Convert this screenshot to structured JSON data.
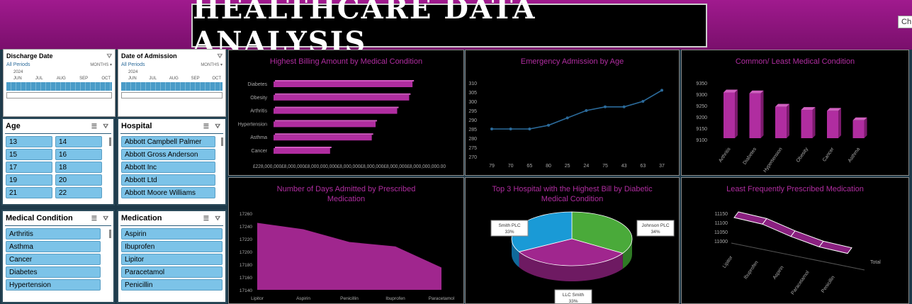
{
  "header": {
    "title": "Healthcare Data Analysis",
    "button_label": "Ch"
  },
  "timelines": [
    {
      "label": "Discharge Date",
      "period": "All Periods",
      "unit": "MONTHS",
      "year": "2024",
      "months": [
        "JUN",
        "JUL",
        "AUG",
        "SEP",
        "OCT"
      ]
    },
    {
      "label": "Date of Admission",
      "period": "All Periods",
      "unit": "MONTHS",
      "year": "2024",
      "months": [
        "JUN",
        "JUL",
        "AUG",
        "SEP",
        "OCT"
      ]
    }
  ],
  "slicers": {
    "age": {
      "label": "Age",
      "items": [
        "13",
        "14",
        "15",
        "16",
        "17",
        "18",
        "19",
        "20",
        "21",
        "22"
      ]
    },
    "hospital": {
      "label": "Hospital",
      "items": [
        "Abbott Campbell Palmer",
        "Abbott Gross Anderson",
        "Abbott Inc",
        "Abbott Ltd",
        "Abbott Moore Williams"
      ]
    },
    "medical_condition": {
      "label": "Medical Condition",
      "items": [
        "Arthritis",
        "Asthma",
        "Cancer",
        "Diabetes",
        "Hypertension"
      ]
    },
    "medication": {
      "label": "Medication",
      "items": [
        "Aspirin",
        "Ibuprofen",
        "Lipitor",
        "Paracetamol",
        "Penicillin"
      ]
    }
  },
  "colors": {
    "accent": "#b02da0",
    "line": "#2b6a9a",
    "slicer_item": "#7cc3e8",
    "pie_blue": "#1a9ad6",
    "pie_green": "#4aaa3a",
    "pie_purple": "#a0268e"
  },
  "chart_data": [
    {
      "type": "bar",
      "title": "Highest Billing Amount by Medical Condition",
      "categories": [
        "Diabetes",
        "Obesity",
        "Arthritis",
        "Hypertension",
        "Asthma",
        "Cancer"
      ],
      "values": [
        1450000,
        1415000,
        1290000,
        1065000,
        1025000,
        590000
      ],
      "xlim": [
        0,
        1900000
      ],
      "tick_labels_raw": "£228,000,000£8,000,000£8,000,000,000£8,000,000£8,000,000£8,000,000£8,000,000,000.00"
    },
    {
      "type": "line",
      "title": "Emergency Admission by Age",
      "categories": [
        "79",
        "70",
        "65",
        "80",
        "25",
        "24",
        "75",
        "43",
        "63",
        "37"
      ],
      "values": [
        285,
        285,
        285,
        287,
        291,
        295,
        297,
        297,
        300,
        306
      ],
      "ylim": [
        270,
        310
      ],
      "yticks": [
        "310",
        "305",
        "300",
        "295",
        "290",
        "285",
        "280",
        "275",
        "270"
      ]
    },
    {
      "type": "bar",
      "title": "Common/ Least Medical Condition",
      "categories": [
        "Arthritis",
        "Diabetes",
        "Hypertension",
        "Obesity",
        "Cancer",
        "Asthma"
      ],
      "values": [
        9308,
        9304,
        9245,
        9231,
        9227,
        9185
      ],
      "ylim": [
        9100,
        9350
      ],
      "yticks": [
        "9350",
        "9300",
        "9250",
        "9200",
        "9150",
        "9100"
      ]
    },
    {
      "type": "area",
      "title": "Number of Days Admitted by Prescribed Medication",
      "categories": [
        "Lipitor",
        "Aspirin",
        "Penicillin",
        "Ibuprofen",
        "Paracetamol"
      ],
      "values": [
        17245,
        17235,
        17215,
        17208,
        17175
      ],
      "ylim": [
        17140,
        17260
      ],
      "yticks": [
        "17260",
        "17240",
        "17220",
        "17200",
        "17180",
        "17160",
        "17140"
      ]
    },
    {
      "type": "pie",
      "title": "Top 3 Hospital with the Highest Bill  by Diabetic Medical Condition",
      "labels": [
        "Johnson PLC",
        "LLC Smith",
        "Smith PLC"
      ],
      "values": [
        34,
        33,
        33
      ],
      "value_labels": [
        "34%",
        "33%",
        "33%"
      ]
    },
    {
      "type": "line",
      "title": "Least Frequently Prescribed Medication",
      "categories": [
        "Lipitor",
        "Ibuprofen",
        "Aspirin",
        "Paracetamol",
        "Penicillin"
      ],
      "values": [
        11150,
        11130,
        11080,
        11040,
        11020
      ],
      "ylim": [
        11000,
        11150
      ],
      "yticks": [
        "11150",
        "11100",
        "11050",
        "11000"
      ],
      "series_name": "Total"
    }
  ]
}
